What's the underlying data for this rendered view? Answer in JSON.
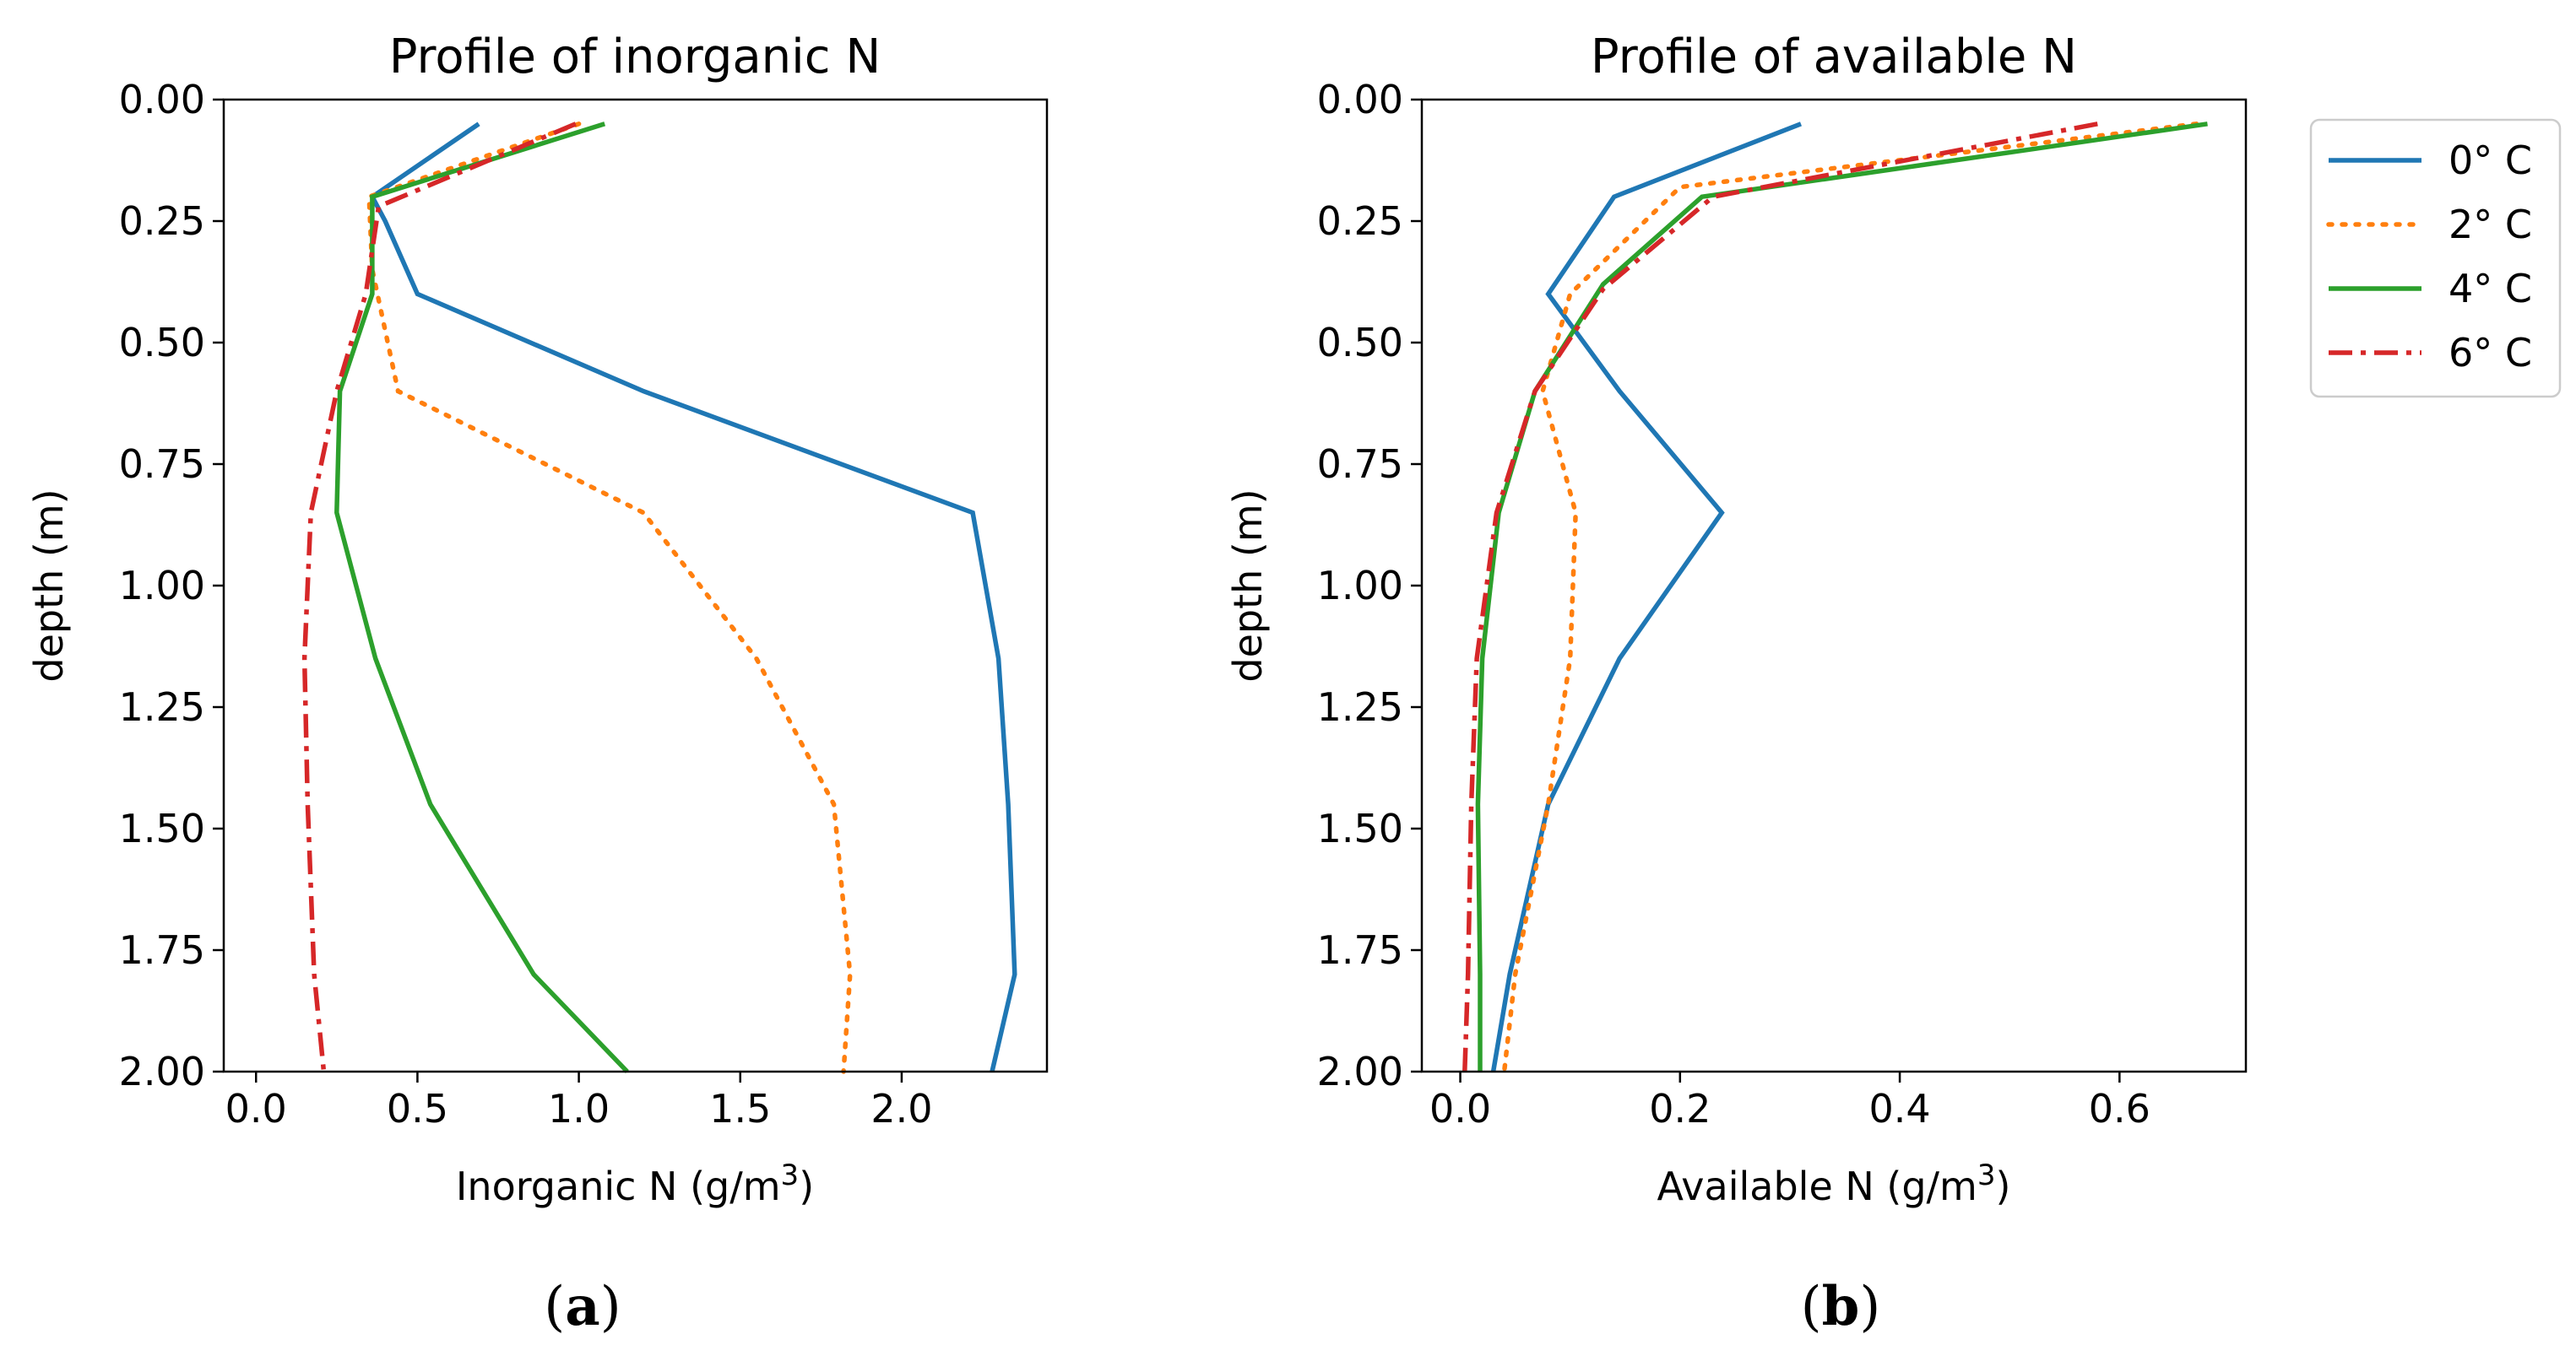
{
  "chart_data": [
    {
      "type": "line",
      "title": "Profile of inorganic N",
      "xlabel": "Inorganic N (g/m",
      "xlabel_sup": "3",
      "xlabel_close": ")",
      "ylabel": "depth (m)",
      "caption_letter": "a",
      "xlim": [
        -0.1,
        2.45
      ],
      "ylim": [
        2.0,
        0.0
      ],
      "xticks": [
        "0.0",
        "0.5",
        "1.0",
        "1.5",
        "2.0"
      ],
      "xtick_values": [
        0.0,
        0.5,
        1.0,
        1.5,
        2.0
      ],
      "yticks": [
        "0.00",
        "0.25",
        "0.50",
        "0.75",
        "1.00",
        "1.25",
        "1.50",
        "1.75",
        "2.00"
      ],
      "ytick_values": [
        0.0,
        0.25,
        0.5,
        0.75,
        1.0,
        1.25,
        1.5,
        1.75,
        2.0
      ],
      "series": [
        {
          "name": "0° C",
          "color": "#1f77b4",
          "style": "solid",
          "x": [
            0.69,
            0.36,
            0.4,
            0.5,
            1.2,
            2.22,
            2.3,
            2.33,
            2.35,
            2.28
          ],
          "y": [
            0.05,
            0.2,
            0.25,
            0.4,
            0.6,
            0.85,
            1.15,
            1.45,
            1.8,
            2.0
          ]
        },
        {
          "name": "2° C",
          "color": "#ff7f0e",
          "style": "dotted",
          "x": [
            1.0,
            0.35,
            0.36,
            0.44,
            1.2,
            1.55,
            1.79,
            1.84,
            1.82
          ],
          "y": [
            0.05,
            0.2,
            0.35,
            0.6,
            0.85,
            1.15,
            1.45,
            1.8,
            2.0
          ]
        },
        {
          "name": "4° C",
          "color": "#2ca02c",
          "style": "solid",
          "x": [
            1.08,
            0.36,
            0.36,
            0.26,
            0.25,
            0.37,
            0.54,
            0.86,
            1.15
          ],
          "y": [
            0.05,
            0.2,
            0.4,
            0.6,
            0.85,
            1.15,
            1.45,
            1.8,
            2.0
          ]
        },
        {
          "name": "6° C",
          "color": "#d62728",
          "style": "dashdot",
          "x": [
            0.99,
            0.38,
            0.34,
            0.25,
            0.17,
            0.15,
            0.16,
            0.18,
            0.21
          ],
          "y": [
            0.05,
            0.22,
            0.4,
            0.6,
            0.85,
            1.15,
            1.45,
            1.8,
            2.0
          ]
        }
      ]
    },
    {
      "type": "line",
      "title": "Profile of available N",
      "xlabel": "Available N (g/m",
      "xlabel_sup": "3",
      "xlabel_close": ")",
      "ylabel": "depth (m)",
      "caption_letter": "b",
      "xlim": [
        -0.035,
        0.715
      ],
      "ylim": [
        2.0,
        0.0
      ],
      "xticks": [
        "0.0",
        "0.2",
        "0.4",
        "0.6"
      ],
      "xtick_values": [
        0.0,
        0.2,
        0.4,
        0.6
      ],
      "yticks": [
        "0.00",
        "0.25",
        "0.50",
        "0.75",
        "1.00",
        "1.25",
        "1.50",
        "1.75",
        "2.00"
      ],
      "ytick_values": [
        0.0,
        0.25,
        0.5,
        0.75,
        1.0,
        1.25,
        1.5,
        1.75,
        2.0
      ],
      "series": [
        {
          "name": "0° C",
          "color": "#1f77b4",
          "style": "solid",
          "x": [
            0.31,
            0.14,
            0.08,
            0.145,
            0.238,
            0.145,
            0.08,
            0.045,
            0.03
          ],
          "y": [
            0.05,
            0.2,
            0.4,
            0.6,
            0.85,
            1.15,
            1.45,
            1.8,
            2.0
          ]
        },
        {
          "name": "2° C",
          "color": "#ff7f0e",
          "style": "dotted",
          "x": [
            0.67,
            0.2,
            0.1,
            0.075,
            0.105,
            0.1,
            0.08,
            0.05,
            0.04
          ],
          "y": [
            0.05,
            0.18,
            0.4,
            0.6,
            0.85,
            1.15,
            1.45,
            1.8,
            2.0
          ]
        },
        {
          "name": "4° C",
          "color": "#2ca02c",
          "style": "solid",
          "x": [
            0.68,
            0.22,
            0.13,
            0.068,
            0.035,
            0.02,
            0.016,
            0.018,
            0.018
          ],
          "y": [
            0.05,
            0.2,
            0.38,
            0.6,
            0.85,
            1.15,
            1.45,
            1.8,
            2.0
          ]
        },
        {
          "name": "6° C",
          "color": "#d62728",
          "style": "dashdot",
          "x": [
            0.58,
            0.23,
            0.13,
            0.068,
            0.033,
            0.015,
            0.01,
            0.007,
            0.004
          ],
          "y": [
            0.05,
            0.2,
            0.39,
            0.6,
            0.85,
            1.15,
            1.45,
            1.8,
            2.0
          ]
        }
      ]
    }
  ],
  "legend": {
    "placement": "right",
    "entries": [
      {
        "label": "0° C",
        "color": "#1f77b4",
        "style": "solid"
      },
      {
        "label": "2° C",
        "color": "#ff7f0e",
        "style": "dotted"
      },
      {
        "label": "4° C",
        "color": "#2ca02c",
        "style": "solid"
      },
      {
        "label": "6° C",
        "color": "#d62728",
        "style": "dashdot"
      }
    ]
  }
}
